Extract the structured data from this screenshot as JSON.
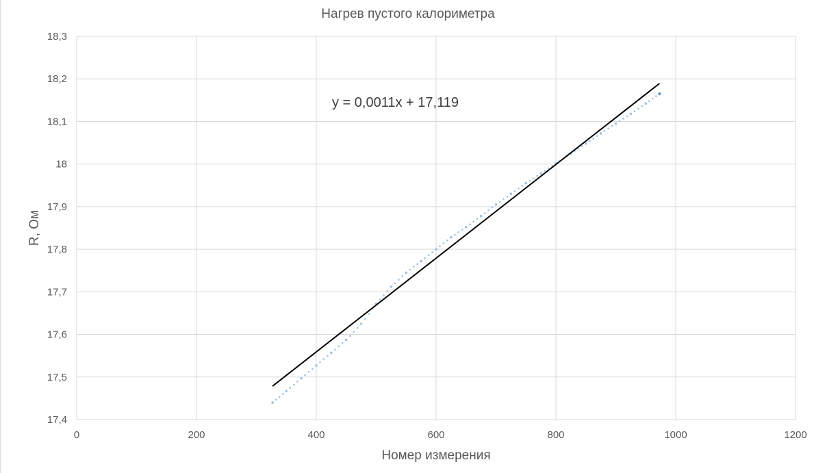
{
  "chart_data": {
    "type": "scatter",
    "title": "Нагрев пустого калориметра",
    "xlabel": "Номер измерения",
    "ylabel": "R, Ом",
    "xlim": [
      0,
      1200
    ],
    "ylim": [
      17.4,
      18.3
    ],
    "x_ticks": [
      0,
      200,
      400,
      600,
      800,
      1000,
      1200
    ],
    "y_ticks": [
      17.4,
      17.5,
      17.6,
      17.7,
      17.8,
      17.9,
      18.0,
      18.1,
      18.2,
      18.3
    ],
    "x_tick_labels": [
      "0",
      "200",
      "400",
      "600",
      "800",
      "1000",
      "1200"
    ],
    "y_tick_labels": [
      "17,4",
      "17,5",
      "17,6",
      "17,7",
      "17,8",
      "17,9",
      "18",
      "18,1",
      "18,2",
      "18,3"
    ],
    "grid": true,
    "legend": "none",
    "series": [
      {
        "marker_color": "#9dc3e6",
        "points": [
          [
            327,
            17.44
          ],
          [
            350,
            17.467
          ],
          [
            375,
            17.497
          ],
          [
            400,
            17.527
          ],
          [
            425,
            17.557
          ],
          [
            450,
            17.587
          ],
          [
            475,
            17.625
          ],
          [
            500,
            17.672
          ],
          [
            525,
            17.712
          ],
          [
            550,
            17.745
          ],
          [
            575,
            17.772
          ],
          [
            600,
            17.8
          ],
          [
            625,
            17.828
          ],
          [
            650,
            17.852
          ],
          [
            675,
            17.878
          ],
          [
            700,
            17.905
          ],
          [
            725,
            17.93
          ],
          [
            750,
            17.955
          ],
          [
            775,
            17.978
          ],
          [
            800,
            18.002
          ],
          [
            825,
            18.025
          ],
          [
            850,
            18.048
          ],
          [
            875,
            18.072
          ],
          [
            900,
            18.095
          ],
          [
            925,
            18.118
          ],
          [
            950,
            18.142
          ],
          [
            973,
            18.165
          ]
        ]
      }
    ],
    "trendline": {
      "type": "linear",
      "color": "#000000",
      "x_range": [
        327,
        973
      ],
      "slope": 0.0011,
      "intercept": 17.119,
      "equation_label": "y = 0,0011x + 17,119"
    }
  }
}
